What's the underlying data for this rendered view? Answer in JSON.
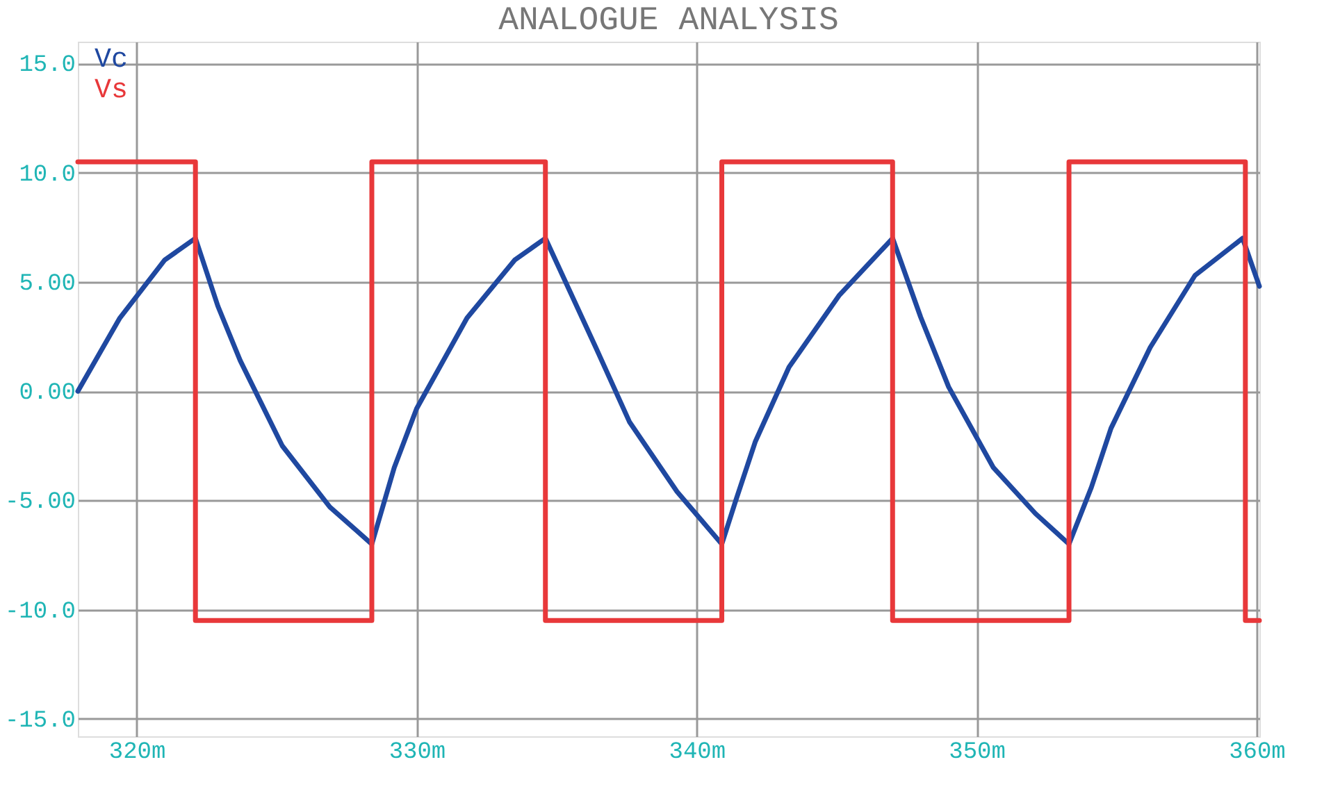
{
  "chart_data": {
    "type": "line",
    "title": "ANALOGUE ANALYSIS",
    "xlim": [
      317.9,
      360.1
    ],
    "xticks": [
      {
        "value": 320,
        "label": "320m"
      },
      {
        "value": 330,
        "label": "330m"
      },
      {
        "value": 340,
        "label": "340m"
      },
      {
        "value": 350,
        "label": "350m"
      },
      {
        "value": 360,
        "label": "360m"
      }
    ],
    "ylim": [
      -15.8,
      16.0
    ],
    "yticks": [
      {
        "value": 15,
        "label": "15.0"
      },
      {
        "value": 10,
        "label": "10.0"
      },
      {
        "value": 5,
        "label": "5.00"
      },
      {
        "value": 0,
        "label": "0.00"
      },
      {
        "value": -5,
        "label": "-5.00"
      },
      {
        "value": -10,
        "label": "-10.0"
      },
      {
        "value": -15,
        "label": "-15.0"
      }
    ],
    "grid": true,
    "legend": "top left",
    "series": [
      {
        "name": "Vc",
        "color": "#1f48a0",
        "x": [
          317.9,
          319.4,
          321.0,
          322.1,
          322.9,
          323.7,
          325.2,
          326.9,
          328.4,
          329.2,
          330.0,
          331.8,
          333.5,
          334.6,
          336.4,
          337.6,
          339.3,
          340.9,
          341.4,
          342.1,
          343.3,
          345.1,
          347.0,
          348.0,
          349.0,
          350.6,
          352.1,
          353.3,
          354.1,
          354.8,
          356.2,
          357.8,
          359.5,
          360.1
        ],
        "values": [
          0.0,
          3.35,
          6.0,
          7.0,
          3.9,
          1.4,
          -2.5,
          -5.3,
          -7.0,
          -3.5,
          -0.8,
          3.35,
          6.0,
          7.0,
          2.0,
          -1.4,
          -4.6,
          -7.0,
          -5.0,
          -2.3,
          1.1,
          4.4,
          7.0,
          3.4,
          0.2,
          -3.5,
          -5.6,
          -7.0,
          -4.4,
          -1.7,
          2.0,
          5.3,
          7.0,
          4.8
        ]
      },
      {
        "name": "Vs",
        "color": "#e8383a",
        "x": [
          317.9,
          322.1,
          322.1,
          328.4,
          328.4,
          334.6,
          334.6,
          340.9,
          340.9,
          347.0,
          347.0,
          353.3,
          353.3,
          359.6,
          359.6,
          360.1
        ],
        "values": [
          10.5,
          10.5,
          -10.5,
          -10.5,
          10.5,
          10.5,
          -10.5,
          -10.5,
          10.5,
          10.5,
          -10.5,
          -10.5,
          10.5,
          10.5,
          -10.5,
          -10.5
        ]
      }
    ]
  }
}
